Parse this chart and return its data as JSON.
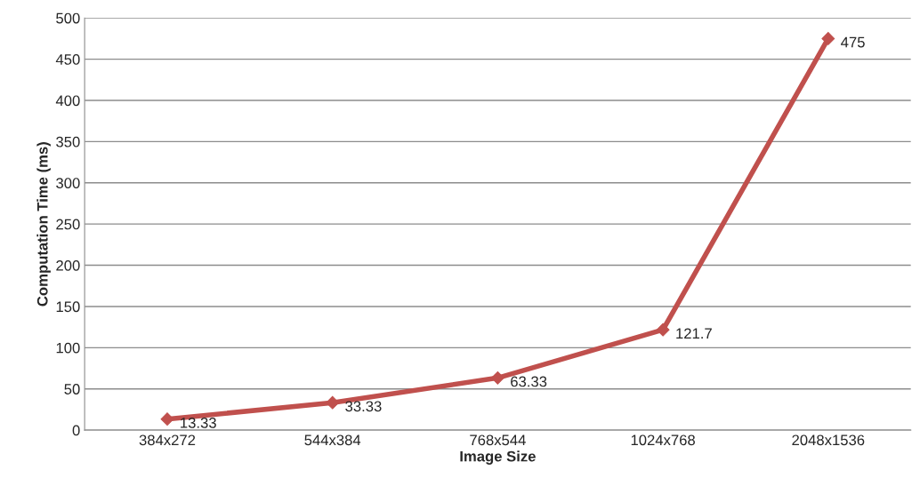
{
  "chart_data": {
    "type": "line",
    "xlabel": "Image Size",
    "ylabel": "Computation Time (ms)",
    "categories": [
      "384x272",
      "544x384",
      "768x544",
      "1024x768",
      "2048x1536"
    ],
    "series": [
      {
        "color": "#c0504d",
        "values": [
          13.33,
          33.33,
          63.33,
          121.7,
          475
        ]
      }
    ],
    "ylim": [
      0,
      500
    ],
    "yticks": [
      0,
      50,
      100,
      150,
      200,
      250,
      300,
      350,
      400,
      450,
      500
    ],
    "grid": "y",
    "marker": "diamond",
    "line_style": "solid",
    "data_labels": true,
    "legend": false
  }
}
